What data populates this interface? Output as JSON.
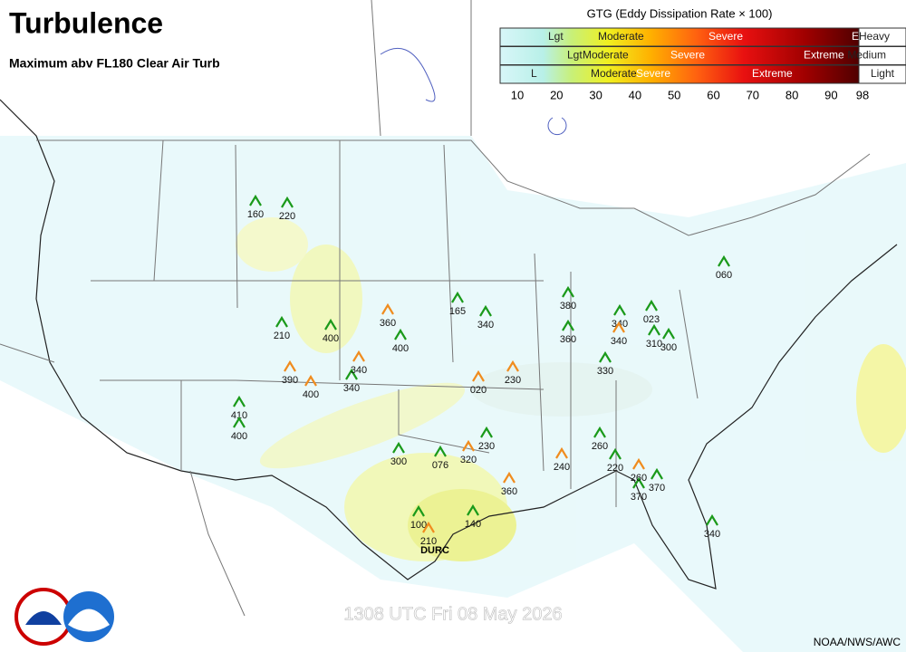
{
  "header": {
    "title": "Turbulence",
    "subtitle": "Maximum abv FL180 Clear Air Turb"
  },
  "legend": {
    "title": "GTG (Eddy Dissipation Rate × 100)",
    "rows": [
      [
        "Lgt",
        "Moderate",
        "Severe",
        "Ex",
        "Heavy"
      ],
      [
        "Lgt",
        "Moderate",
        "Severe",
        "Extreme",
        "Medium"
      ],
      [
        "L",
        "Moderate",
        "Severe",
        "Extreme",
        "Light"
      ]
    ],
    "ticks": [
      10,
      20,
      30,
      40,
      50,
      60,
      70,
      80,
      90,
      98
    ]
  },
  "reports": [
    {
      "label": "160",
      "color": "#1a9a1a"
    },
    {
      "label": "220",
      "color": "#1a9a1a"
    },
    {
      "label": "165",
      "color": "#1a9a1a"
    },
    {
      "label": "340",
      "color": "#1a9a1a"
    },
    {
      "label": "380",
      "color": "#1a9a1a"
    },
    {
      "label": "360",
      "color": "#1a9a1a"
    },
    {
      "label": "340",
      "color": "#1a9a1a"
    },
    {
      "label": "023",
      "color": "#1a9a1a"
    },
    {
      "label": "310",
      "color": "#1a9a1a"
    },
    {
      "label": "300",
      "color": "#1a9a1a"
    },
    {
      "label": "330",
      "color": "#1a9a1a"
    },
    {
      "label": "060",
      "color": "#1a9a1a"
    },
    {
      "label": "210",
      "color": "#1a9a1a"
    },
    {
      "label": "400",
      "color": "#1a9a1a"
    },
    {
      "label": "400",
      "color": "#1a9a1a"
    },
    {
      "label": "340",
      "color": "#1a9a1a"
    },
    {
      "label": "410",
      "color": "#1a9a1a"
    },
    {
      "label": "400",
      "color": "#1a9a1a"
    },
    {
      "label": "300",
      "color": "#1a9a1a"
    },
    {
      "label": "230",
      "color": "#1a9a1a"
    },
    {
      "label": "076",
      "color": "#1a9a1a"
    },
    {
      "label": "260",
      "color": "#1a9a1a"
    },
    {
      "label": "220",
      "color": "#1a9a1a"
    },
    {
      "label": "370",
      "color": "#1a9a1a"
    },
    {
      "label": "370",
      "color": "#1a9a1a"
    },
    {
      "label": "100",
      "color": "#1a9a1a"
    },
    {
      "label": "140",
      "color": "#1a9a1a"
    },
    {
      "label": "340",
      "color": "#1a9a1a"
    },
    {
      "label": "360",
      "color": "#f08c1e"
    },
    {
      "label": "340",
      "color": "#f08c1e"
    },
    {
      "label": "340",
      "color": "#f08c1e"
    },
    {
      "label": "390",
      "color": "#f08c1e"
    },
    {
      "label": "400",
      "color": "#f08c1e"
    },
    {
      "label": "020",
      "color": "#f08c1e"
    },
    {
      "label": "230",
      "color": "#f08c1e"
    },
    {
      "label": "320",
      "color": "#f08c1e"
    },
    {
      "label": "240",
      "color": "#f08c1e"
    },
    {
      "label": "260",
      "color": "#f08c1e"
    },
    {
      "label": "360",
      "color": "#f08c1e"
    },
    {
      "label": "210",
      "color": "#f08c1e"
    }
  ],
  "station": "DURC",
  "footer": {
    "timestamp": "1308 UTC Fri 08 May 2026",
    "credit": "NOAA/NWS/AWC"
  }
}
